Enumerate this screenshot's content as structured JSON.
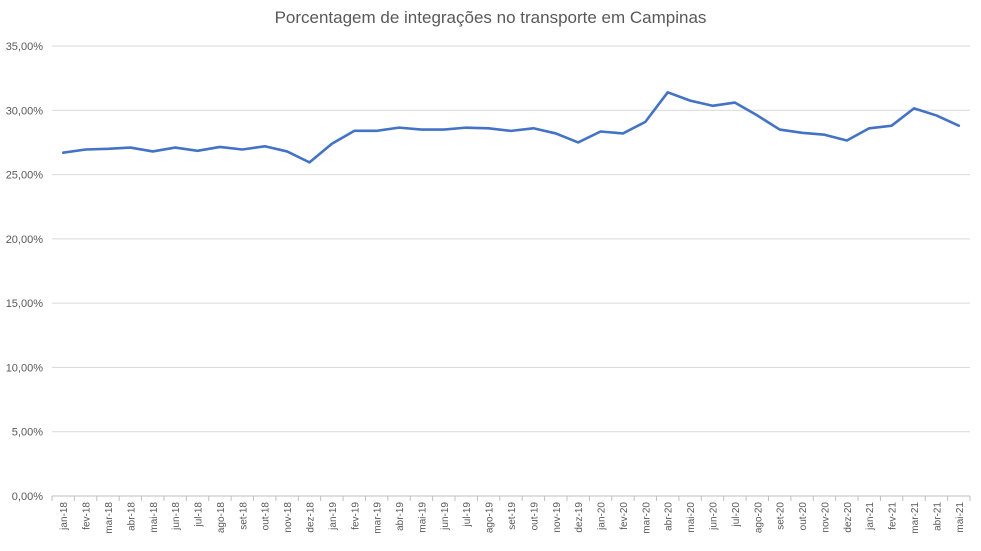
{
  "chart_data": {
    "type": "line",
    "title": "Porcentagem de integrações no transporte em Campinas",
    "xlabel": "",
    "ylabel": "",
    "ylim": [
      0,
      35
    ],
    "yticks": [
      0,
      5,
      10,
      15,
      20,
      25,
      30,
      35
    ],
    "ytick_labels": [
      "0,00%",
      "5,00%",
      "10,00%",
      "15,00%",
      "20,00%",
      "25,00%",
      "30,00%",
      "35,00%"
    ],
    "grid": true,
    "legend": "none",
    "line_color": "#4472c4",
    "categories": [
      "jan-18",
      "fev-18",
      "mar-18",
      "abr-18",
      "mai-18",
      "jun-18",
      "jul-18",
      "ago-18",
      "set-18",
      "out-18",
      "nov-18",
      "dez-18",
      "jan-19",
      "fev-19",
      "mar-19",
      "abr-19",
      "mai-19",
      "jun-19",
      "jul-19",
      "ago-19",
      "set-19",
      "out-19",
      "nov-19",
      "dez-19",
      "jan-20",
      "fev-20",
      "mar-20",
      "abr-20",
      "mai-20",
      "jun-20",
      "jul-20",
      "ago-20",
      "set-20",
      "out-20",
      "nov-20",
      "dez-20",
      "jan-21",
      "fev-21",
      "mar-21",
      "abr-21",
      "mai-21"
    ],
    "series": [
      {
        "values": [
          26.7,
          26.95,
          27.0,
          27.1,
          26.8,
          27.1,
          26.85,
          27.15,
          26.95,
          27.2,
          26.8,
          25.95,
          27.4,
          28.4,
          28.4,
          28.65,
          28.5,
          28.5,
          28.65,
          28.6,
          28.4,
          28.6,
          28.2,
          27.5,
          28.35,
          28.2,
          29.1,
          31.4,
          30.75,
          30.35,
          30.6,
          29.6,
          28.5,
          28.25,
          28.1,
          27.65,
          28.6,
          28.8,
          30.15,
          29.6,
          28.8
        ]
      }
    ]
  }
}
